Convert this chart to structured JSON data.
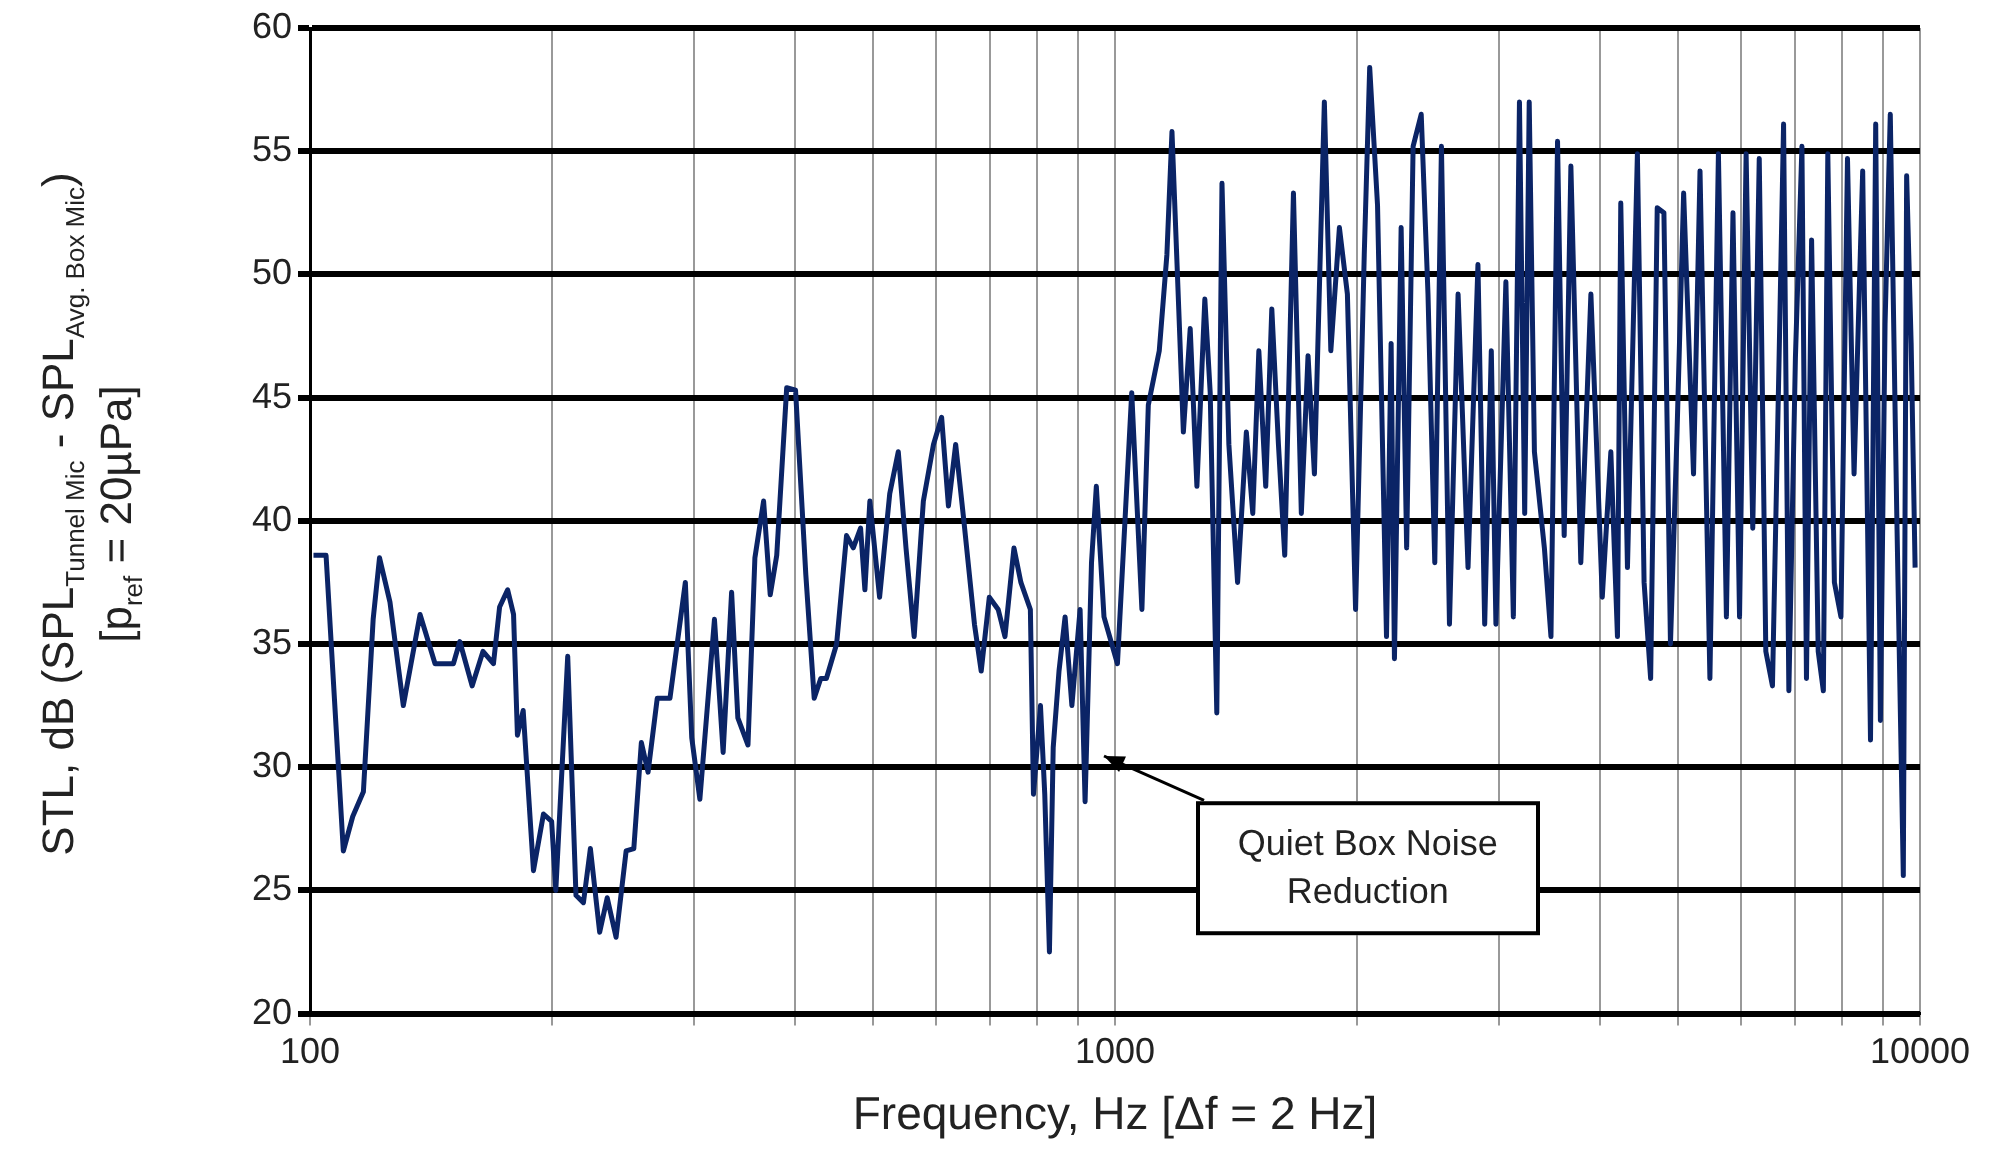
{
  "chart_data": {
    "type": "line",
    "xlabel": "Frequency, Hz [Δf = 2 Hz]",
    "ylabel": "STL, dB (SPL$_{Tunnel Mic}$ - SPL$_{Avg. Box Mic}$)\n[p$_{ref}$ = 20µPa]",
    "log": "x",
    "grid": true,
    "marker": "none",
    "line_style": "solid",
    "xlim": [
      100,
      10000
    ],
    "ylim": [
      20,
      60
    ],
    "xticks": [
      100,
      {
        "value": 200,
        "label": null
      },
      {
        "value": 300,
        "label": null
      },
      {
        "value": 400,
        "label": null
      },
      {
        "value": 500,
        "label": null
      },
      {
        "value": 600,
        "label": null
      },
      {
        "value": 700,
        "label": null
      },
      {
        "value": 800,
        "label": null
      },
      {
        "value": 900,
        "label": null
      },
      1000,
      {
        "value": 2000,
        "label": null
      },
      {
        "value": 3000,
        "label": null
      },
      {
        "value": 4000,
        "label": null
      },
      {
        "value": 5000,
        "label": null
      },
      {
        "value": 6000,
        "label": null
      },
      {
        "value": 7000,
        "label": null
      },
      {
        "value": 8000,
        "label": null
      },
      {
        "value": 9000,
        "label": null
      },
      10000
    ],
    "yticks": [
      20,
      25,
      30,
      35,
      40,
      45,
      50,
      55,
      60
    ],
    "annotations": [
      "Quiet Box Noise Reduction"
    ],
    "x": [
      101,
      104.7,
      110,
      113,
      116.5,
      119.8,
      122,
      125.7,
      130.6,
      137,
      143,
      150.7,
      153.5,
      159,
      164,
      169,
      172,
      176,
      179,
      181,
      184,
      189.5,
      195,
      199.6,
      202,
      209,
      214,
      218.6,
      223,
      229,
      234,
      240,
      247,
      252.5,
      258,
      263,
      270,
      280,
      292.6,
      298,
      305,
      318,
      326,
      334,
      340,
      350,
      357,
      366,
      373,
      380,
      391,
      401,
      413,
      423,
      431,
      438,
      451,
      464,
      473,
      483,
      489,
      496,
      510,
      525,
      538,
      550,
      563,
      578,
      595,
      609,
      621,
      634,
      649,
      669,
      682,
      698,
      716,
      730,
      749,
      764,
      785,
      792,
      808,
      818,
      829,
      838,
      852,
      867,
      884,
      905,
      918,
      935,
      948,
      969,
      1007,
      1049,
      1080,
      1100,
      1135,
      1160,
      1177,
      1200,
      1216,
      1240,
      1264,
      1293,
      1313,
      1338,
      1358,
      1385,
      1420,
      1456,
      1483,
      1509,
      1539,
      1566,
      1596,
      1625,
      1666,
      1704,
      1737,
      1769,
      1820,
      1854,
      1900,
      1944,
      1990,
      2040,
      2072,
      2119,
      2174,
      2203,
      2224,
      2267,
      2303,
      2346,
      2401,
      2448,
      2496,
      2544,
      2603,
      2668,
      2745,
      2824,
      2879,
      2934,
      2973,
      3059,
      3125,
      3180,
      3228,
      3270,
      3319,
      3415,
      3480,
      3546,
      3614,
      3684,
      3790,
      3901,
      4030,
      4130,
      4209,
      4249,
      4331,
      4456,
      4542,
      4628,
      4716,
      4807,
      4898,
      4991,
      5086,
      5232,
      5330,
      5483,
      5618,
      5748,
      5857,
      5968,
      6081,
      6198,
      6314,
      6434,
      6557,
      6680,
      6769,
      6872,
      7002,
      7134,
      7227,
      7334,
      7474,
      7585,
      7682,
      7828,
      7976,
      8127,
      8281,
      8488,
      8680,
      8810,
      8929,
      9049,
      9185,
      9357,
      9534,
      9625,
      9750,
      9861
    ],
    "series": [
      {
        "color": "#0b2466",
        "values": [
          38.6,
          38.6,
          26.6,
          28,
          29,
          36,
          38.5,
          36.7,
          32.5,
          36.2,
          34.2,
          34.2,
          35.1,
          33.3,
          34.7,
          34.2,
          36.5,
          37.2,
          36.2,
          31.3,
          32.3,
          25.8,
          28.1,
          27.8,
          25,
          34.5,
          24.8,
          24.5,
          26.7,
          23.3,
          24.7,
          23.1,
          26.6,
          26.7,
          31,
          29.8,
          32.8,
          32.8,
          37.5,
          31.2,
          28.7,
          36,
          30.6,
          37.1,
          32,
          30.9,
          38.5,
          40.8,
          37,
          38.6,
          45.4,
          45.3,
          37.8,
          32.8,
          33.6,
          33.6,
          35,
          39.4,
          38.9,
          39.7,
          37.2,
          40.8,
          36.9,
          41.1,
          42.8,
          38.9,
          35.3,
          40.8,
          43.1,
          44.2,
          40.6,
          43.1,
          40,
          35.8,
          33.9,
          36.9,
          36.4,
          35.3,
          38.9,
          37.5,
          36.4,
          28.9,
          32.5,
          28.9,
          22.5,
          30.8,
          33.9,
          36.1,
          32.5,
          36.4,
          28.6,
          38.3,
          41.4,
          36.1,
          34.2,
          45.2,
          36.4,
          44.7,
          46.9,
          50.8,
          55.8,
          48.6,
          43.6,
          47.8,
          41.4,
          49,
          45.2,
          32.2,
          53.7,
          43.1,
          37.5,
          43.6,
          40.3,
          46.9,
          41.4,
          48.6,
          43.1,
          38.6,
          53.3,
          40.3,
          46.7,
          41.9,
          57,
          46.9,
          51.9,
          49.2,
          36.4,
          50.8,
          58.4,
          52.8,
          35.3,
          47.2,
          34.4,
          51.9,
          38.9,
          55.2,
          56.5,
          49.2,
          38.3,
          55.2,
          35.8,
          49.2,
          38.1,
          50.4,
          35.8,
          46.9,
          35.8,
          49.7,
          36.1,
          57,
          40.3,
          57,
          42.8,
          38.9,
          35.3,
          55.4,
          39.4,
          54.4,
          38.3,
          49.2,
          36.9,
          42.8,
          35.3,
          52.9,
          38.1,
          54.9,
          37.5,
          33.6,
          52.7,
          52.5,
          35,
          43.6,
          53.3,
          41.9,
          54.2,
          33.6,
          54.9,
          36.1,
          52.5,
          36.1,
          54.9,
          39.7,
          54.7,
          34.7,
          33.3,
          46.3,
          56.1,
          33.1,
          46.6,
          55.2,
          33.6,
          51.4,
          34.7,
          33.1,
          54.9,
          37.5,
          36.1,
          54.7,
          41.9,
          54.2,
          31.1,
          56.1,
          31.9,
          48,
          56.5,
          40.3,
          25.6,
          54,
          47.2,
          38.1
        ]
      }
    ]
  }
}
